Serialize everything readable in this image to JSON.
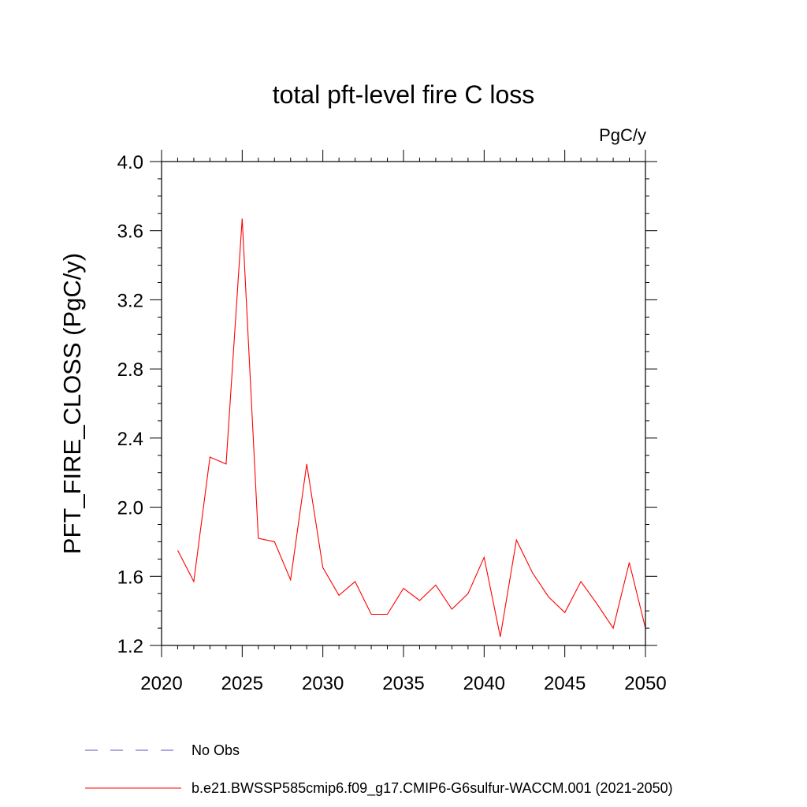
{
  "chart_data": {
    "type": "line",
    "title": "total pft-level fire C loss",
    "units_label": "PgC/y",
    "xlabel": "",
    "ylabel": "PFT_FIRE_CLOSS  (PgC/y)",
    "xlim": [
      2020,
      2050
    ],
    "ylim": [
      1.2,
      4.0
    ],
    "x_ticks": [
      2020,
      2025,
      2030,
      2035,
      2040,
      2045,
      2050
    ],
    "x_tick_labels": [
      "2020",
      "2025",
      "2030",
      "2035",
      "2040",
      "2045",
      "2050"
    ],
    "y_ticks": [
      1.2,
      1.6,
      2.0,
      2.4,
      2.8,
      3.2,
      3.6,
      4.0
    ],
    "y_tick_labels": [
      "1.2",
      "1.6",
      "2.0",
      "2.4",
      "2.8",
      "3.2",
      "3.6",
      "4.0"
    ],
    "grid": false,
    "legend_position": "bottom",
    "series": [
      {
        "name": "b.e21.BWSSP585cmip6.f09_g17.CMIP6-G6sulfur-WACCM.001 (2021-2050)",
        "color": "#ff0000",
        "style": "solid",
        "x": [
          2021,
          2022,
          2023,
          2024,
          2025,
          2026,
          2027,
          2028,
          2029,
          2030,
          2031,
          2032,
          2033,
          2034,
          2035,
          2036,
          2037,
          2038,
          2039,
          2040,
          2041,
          2042,
          2043,
          2044,
          2045,
          2046,
          2047,
          2048,
          2049,
          2050
        ],
        "y": [
          1.75,
          1.57,
          2.29,
          2.25,
          3.67,
          1.82,
          1.8,
          1.58,
          2.25,
          1.65,
          1.49,
          1.57,
          1.38,
          1.38,
          1.53,
          1.46,
          1.55,
          1.41,
          1.5,
          1.71,
          1.25,
          1.81,
          1.62,
          1.48,
          1.39,
          1.57,
          1.44,
          1.3,
          1.68,
          1.3
        ]
      }
    ],
    "legend": [
      {
        "label": "No Obs",
        "color": "#5555bb",
        "style": "dashed"
      },
      {
        "label": "b.e21.BWSSP585cmip6.f09_g17.CMIP6-G6sulfur-WACCM.001 (2021-2050)",
        "color": "#ff0000",
        "style": "solid"
      }
    ]
  }
}
